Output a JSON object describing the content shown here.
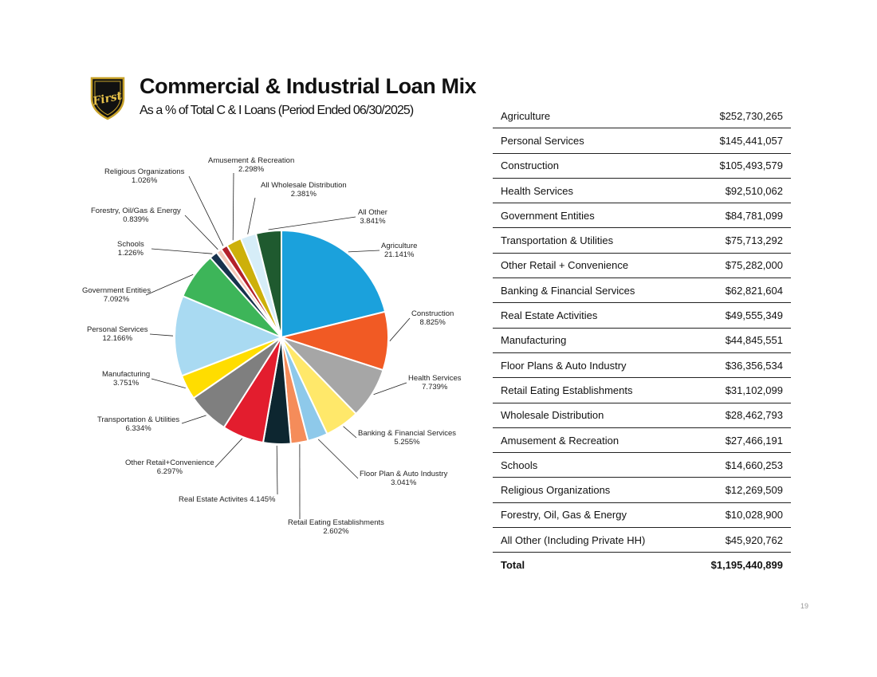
{
  "header": {
    "title": "Commercial & Industrial Loan Mix",
    "subtitle": "As a % of Total C & I Loans (Period Ended 06/30/2025)",
    "logo_text": "First"
  },
  "chart_data": {
    "type": "pie",
    "title": "Commercial & Industrial Loan Mix",
    "start": "12 o'clock, clockwise",
    "slices": [
      {
        "name": "Agriculture",
        "value": 21.141,
        "label": "21.141%",
        "color": "#1ba1dc"
      },
      {
        "name": "Construction",
        "value": 8.825,
        "label": "8.825%",
        "color": "#f15a24"
      },
      {
        "name": "Health Services",
        "value": 7.739,
        "label": "7.739%",
        "color": "#a6a6a6"
      },
      {
        "name": "Banking & Financial Services",
        "value": 5.255,
        "label": "5.255%",
        "color": "#ffe86a"
      },
      {
        "name": "Floor Plan & Auto Industry",
        "value": 3.041,
        "label": "3.041%",
        "color": "#8ec9ea"
      },
      {
        "name": "Retail Eating Establishments",
        "value": 2.602,
        "label": "2.602%",
        "color": "#f58c5a"
      },
      {
        "name": "Real Estate Activites",
        "value": 4.145,
        "label": "4.145%",
        "color": "#0d2630"
      },
      {
        "name": "Other Retail+Convenience",
        "value": 6.297,
        "label": "6.297%",
        "color": "#e31d2e"
      },
      {
        "name": "Transportation & Utilities",
        "value": 6.334,
        "label": "6.334%",
        "color": "#7f7f7f"
      },
      {
        "name": "Manufacturing",
        "value": 3.751,
        "label": "3.751%",
        "color": "#ffdd00"
      },
      {
        "name": "Personal Services",
        "value": 12.166,
        "label": "12.166%",
        "color": "#a9daf2"
      },
      {
        "name": "Government Entities",
        "value": 7.092,
        "label": "7.092%",
        "color": "#3db559"
      },
      {
        "name": "Schools",
        "value": 1.226,
        "label": "1.226%",
        "color": "#17324d"
      },
      {
        "name": "Forestry, Oil/Gas & Energy",
        "value": 0.839,
        "label": "0.839%",
        "color": "#f4c7b8"
      },
      {
        "name": "Religious Organizations",
        "value": 1.026,
        "label": "1.026%",
        "color": "#b3202a"
      },
      {
        "name": "Amusement & Recreation",
        "value": 2.298,
        "label": "2.298%",
        "color": "#cdb00a"
      },
      {
        "name": "All Wholesale Distribution",
        "value": 2.381,
        "label": "2.381%",
        "color": "#d6edf8"
      },
      {
        "name": "All Other",
        "value": 3.841,
        "label": "3.841%",
        "color": "#1f5a2f"
      }
    ]
  },
  "table": {
    "rows": [
      {
        "name": "Agriculture",
        "amount": "$252,730,265"
      },
      {
        "name": "Personal Services",
        "amount": "$145,441,057"
      },
      {
        "name": "Construction",
        "amount": "$105,493,579"
      },
      {
        "name": "Health Services",
        "amount": "$92,510,062"
      },
      {
        "name": "Government Entities",
        "amount": "$84,781,099"
      },
      {
        "name": "Transportation & Utilities",
        "amount": "$75,713,292"
      },
      {
        "name": "Other Retail + Convenience",
        "amount": "$75,282,000"
      },
      {
        "name": "Banking & Financial Services",
        "amount": "$62,821,604"
      },
      {
        "name": "Real Estate Activities",
        "amount": "$49,555,349"
      },
      {
        "name": "Manufacturing",
        "amount": "$44,845,551"
      },
      {
        "name": "Floor Plans & Auto Industry",
        "amount": "$36,356,534"
      },
      {
        "name": "Retail Eating Establishments",
        "amount": "$31,102,099"
      },
      {
        "name": "Wholesale Distribution",
        "amount": "$28,462,793"
      },
      {
        "name": "Amusement & Recreation",
        "amount": "$27,466,191"
      },
      {
        "name": "Schools",
        "amount": "$14,660,253"
      },
      {
        "name": "Religious Organizations",
        "amount": "$12,269,509"
      },
      {
        "name": "Forestry, Oil, Gas & Energy",
        "amount": "$10,028,900"
      },
      {
        "name": "All Other (Including Private HH)",
        "amount": "$45,920,762"
      }
    ],
    "total": {
      "name": "Total",
      "amount": "$1,195,440,899"
    }
  },
  "page_number": "19"
}
